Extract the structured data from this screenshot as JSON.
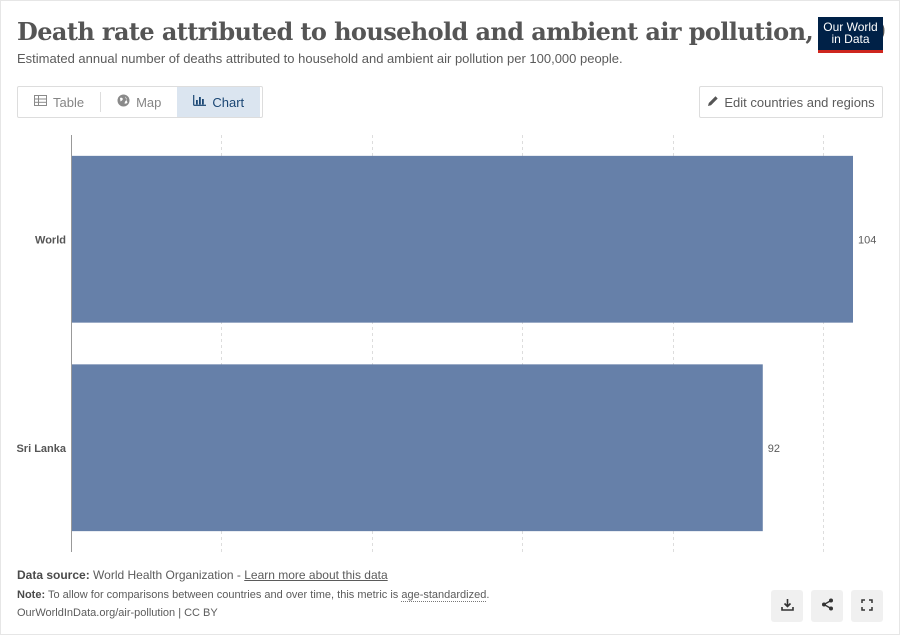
{
  "header": {
    "title": "Death rate attributed to household and ambient air pollution, 2019",
    "subtitle": "Estimated annual number of deaths attributed to household and ambient air pollution per 100,000 people."
  },
  "logo": {
    "line1": "Our World",
    "line2": "in Data"
  },
  "tabs": [
    {
      "label": "Table",
      "icon": "table-icon",
      "active": false
    },
    {
      "label": "Map",
      "icon": "globe-icon",
      "active": false
    },
    {
      "label": "Chart",
      "icon": "chart-icon",
      "active": true
    }
  ],
  "edit_button": {
    "label": "Edit countries and regions",
    "icon": "pencil-icon"
  },
  "chart_data": {
    "type": "bar",
    "orientation": "horizontal",
    "categories": [
      "World",
      "Sri Lanka"
    ],
    "values": [
      104,
      92
    ],
    "value_labels": [
      "104",
      "92"
    ],
    "xlim": [
      0,
      104
    ],
    "gridlines_at": [
      20,
      40,
      60,
      80,
      100
    ],
    "grid": true,
    "bar_color": "#6680a9"
  },
  "footer": {
    "source_label": "Data source:",
    "source_text": "World Health Organization - ",
    "source_link": "Learn more about this data",
    "note_label": "Note:",
    "note_text": "To allow for comparisons between countries and over time, this metric is ",
    "note_link": "age-standardized",
    "note_end": ".",
    "url": "OurWorldInData.org/air-pollution | CC BY"
  },
  "actions": [
    {
      "name": "download-button",
      "icon": "download-icon"
    },
    {
      "name": "share-button",
      "icon": "share-icon"
    },
    {
      "name": "fullscreen-button",
      "icon": "fullscreen-icon"
    }
  ]
}
